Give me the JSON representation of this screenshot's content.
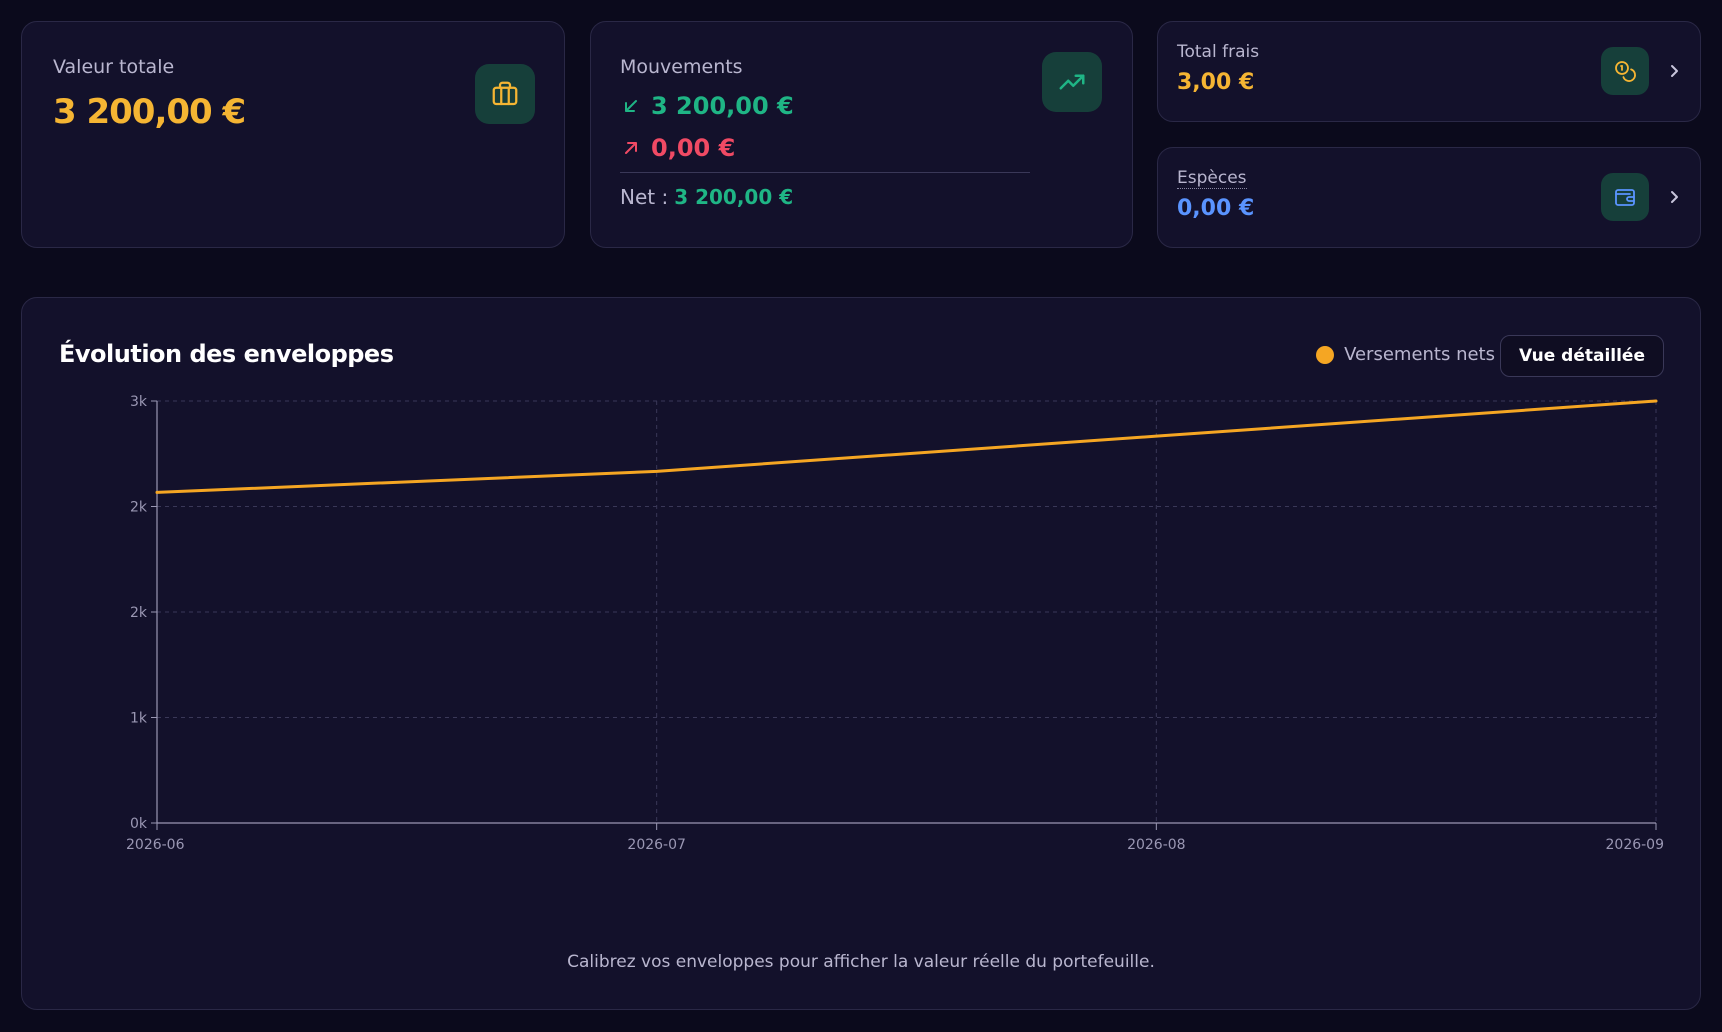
{
  "cards": {
    "total": {
      "label": "Valeur totale",
      "value": "3 200,00 €"
    },
    "mouvements": {
      "label": "Mouvements",
      "in_value": "3 200,00 €",
      "out_value": "0,00 €",
      "net_label": "Net :",
      "net_value": "3 200,00 €"
    },
    "frais": {
      "label": "Total frais",
      "value": "3,00 €"
    },
    "especes": {
      "label": "Espèces",
      "value": "0,00 €"
    }
  },
  "chart_section": {
    "title": "Évolution des enveloppes",
    "legend_label": "Versements nets",
    "detail_button": "Vue détaillée",
    "footer_note": "Calibrez vos enveloppes pour afficher la valeur réelle du portefeuille."
  },
  "colors": {
    "accent_gold": "#f5b533",
    "green": "#1fb585",
    "red": "#f04a64",
    "blue": "#5a94ff",
    "line": "#f5a623"
  },
  "icons": {
    "total": "briefcase-icon",
    "mouvements": "trending-up-icon",
    "frais": "coins-icon",
    "especes": "wallet-icon"
  },
  "chart_data": {
    "type": "line",
    "x": [
      "2026-06",
      "2026-07",
      "2026-08",
      "2026-09"
    ],
    "series": [
      {
        "name": "Versements nets",
        "values": [
          2350,
          2500,
          2750,
          3000
        ]
      }
    ],
    "ylim": [
      0,
      3000
    ],
    "y_ticks": [
      0,
      750,
      1500,
      2250,
      3000
    ],
    "y_tick_labels": [
      "0k",
      "1k",
      "2k",
      "2k",
      "3k"
    ],
    "grid": true,
    "legend": "top-right",
    "title": "Évolution des enveloppes",
    "xlabel": "",
    "ylabel": ""
  }
}
